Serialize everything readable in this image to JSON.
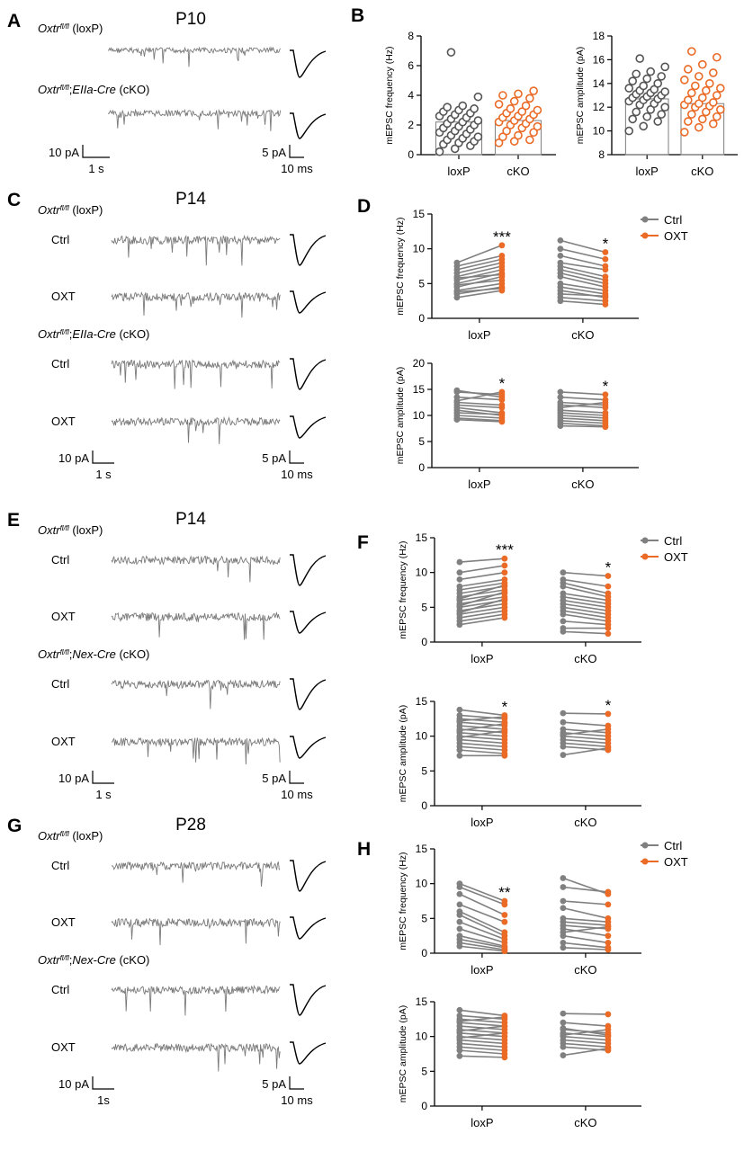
{
  "colors": {
    "ctrl": "#808080",
    "oxt": "#ea6a26",
    "loxp": "#555555",
    "ckO": "#ea6a26",
    "trace": "#7a7a7a",
    "axis": "#000000"
  },
  "panels": {
    "A": {
      "letter": "A",
      "age": "P10",
      "rows": [
        {
          "geno": "Oxtr",
          "sup": "fl/fl",
          "suffix": "(loxP)",
          "cond": ""
        },
        {
          "geno": "Oxtr",
          "sup": "fl/fl",
          "suffix": ";EIIa-Cre (cKO)",
          "cond": ""
        }
      ],
      "scale_left": [
        "10 pA",
        "1 s"
      ],
      "scale_right": [
        "5 pA",
        "10 ms"
      ]
    },
    "B": {
      "letter": "B"
    },
    "C": {
      "letter": "C",
      "age": "P14",
      "geno1": "Oxtr",
      "sup1": "fl/fl",
      "suffix1": "(loxP)",
      "geno2": "Oxtr",
      "sup2": "fl/fl",
      "suffix2": ";EIIa-Cre (cKO)",
      "cond": [
        "Ctrl",
        "OXT",
        "Ctrl",
        "OXT"
      ],
      "scale_left": [
        "10 pA",
        "1 s"
      ],
      "scale_right": [
        "5 pA",
        "10 ms"
      ]
    },
    "D": {
      "letter": "D"
    },
    "E": {
      "letter": "E",
      "age": "P14",
      "geno1": "Oxtr",
      "sup1": "fl/fl",
      "suffix1": "(loxP)",
      "geno2": "Oxtr",
      "sup2": "fl/fl",
      "suffix2": ";Nex-Cre (cKO)",
      "cond": [
        "Ctrl",
        "OXT",
        "Ctrl",
        "OXT"
      ],
      "scale_left": [
        "10 pA",
        "1 s"
      ],
      "scale_right": [
        "5 pA",
        "10 ms"
      ]
    },
    "F": {
      "letter": "F"
    },
    "G": {
      "letter": "G",
      "age": "P28",
      "geno1": "Oxtr",
      "sup1": "fl/fl",
      "suffix1": "(loxP)",
      "geno2": "Oxtr",
      "sup2": "fl/fl",
      "suffix2": ";Nex-Cre (cKO)",
      "cond": [
        "Ctrl",
        "OXT",
        "Ctrl",
        "OXT"
      ],
      "scale_left": [
        "10 pA",
        "1s"
      ],
      "scale_right": [
        "5 pA",
        "10 ms"
      ]
    },
    "H": {
      "letter": "H"
    }
  },
  "legend": {
    "ctrl": "Ctrl",
    "oxt": "OXT"
  },
  "chart_data": [
    {
      "id": "B1",
      "type": "scatter",
      "subtype": "bar-with-dots",
      "ylabel": "mEPSC frequency (Hz)",
      "categories": [
        "loxP",
        "cKO"
      ],
      "ylim": [
        0,
        8
      ],
      "yticks": [
        0,
        2,
        4,
        6,
        8
      ],
      "ytick_labels": [
        "0",
        "2",
        "4",
        "6",
        "8"
      ],
      "series": [
        {
          "name": "loxP",
          "mean": 2.2,
          "values": [
            0.2,
            0.4,
            0.6,
            0.7,
            0.8,
            0.9,
            1.0,
            1.1,
            1.2,
            1.3,
            1.4,
            1.5,
            1.6,
            1.7,
            1.8,
            1.9,
            2.0,
            2.1,
            2.2,
            2.3,
            2.4,
            2.5,
            2.6,
            2.7,
            2.8,
            2.9,
            3.0,
            3.1,
            3.2,
            3.3,
            3.9,
            6.9
          ]
        },
        {
          "name": "cKO",
          "mean": 2.3,
          "values": [
            0.8,
            0.9,
            1.0,
            1.2,
            1.3,
            1.5,
            1.6,
            1.8,
            1.9,
            2.0,
            2.1,
            2.2,
            2.3,
            2.4,
            2.5,
            2.6,
            2.7,
            2.8,
            2.9,
            3.0,
            3.1,
            3.3,
            3.4,
            3.6,
            3.8,
            4.0,
            4.1,
            4.3
          ]
        }
      ]
    },
    {
      "id": "B2",
      "type": "scatter",
      "subtype": "bar-with-dots",
      "ylabel": "mEPSC amplitude (pA)",
      "categories": [
        "loxP",
        "cKO"
      ],
      "ylim": [
        8,
        18
      ],
      "yticks": [
        8,
        10,
        12,
        14,
        16,
        18
      ],
      "ytick_labels": [
        "8",
        "10",
        "12",
        "14",
        "16",
        "18"
      ],
      "series": [
        {
          "name": "loxP",
          "mean": 12.7,
          "values": [
            10.0,
            10.4,
            10.8,
            11.0,
            11.2,
            11.4,
            11.6,
            11.8,
            12.0,
            12.2,
            12.3,
            12.5,
            12.6,
            12.7,
            12.8,
            12.9,
            13.0,
            13.1,
            13.2,
            13.3,
            13.4,
            13.5,
            13.6,
            13.8,
            14.0,
            14.2,
            14.4,
            14.6,
            14.8,
            15.0,
            15.4,
            16.1
          ]
        },
        {
          "name": "cKO",
          "mean": 12.3,
          "values": [
            9.9,
            10.3,
            10.6,
            10.8,
            11.0,
            11.2,
            11.4,
            11.6,
            11.8,
            12.0,
            12.1,
            12.2,
            12.3,
            12.4,
            12.6,
            12.8,
            13.0,
            13.2,
            13.4,
            13.6,
            13.8,
            14.0,
            14.3,
            14.6,
            14.9,
            15.2,
            15.6,
            16.2,
            16.7
          ]
        }
      ]
    },
    {
      "id": "D1",
      "type": "line",
      "subtype": "paired",
      "ylabel": "mEPSC frequency (Hz)",
      "categories": [
        "loxP",
        "cKO"
      ],
      "ylim": [
        0,
        15
      ],
      "yticks": [
        0,
        5,
        10,
        15
      ],
      "ytick_labels": [
        "0",
        "5",
        "10",
        "15"
      ],
      "stars": [
        "***",
        "*"
      ],
      "pairs": [
        [
          [
            3.0,
            4.0
          ],
          [
            3.5,
            4.5
          ],
          [
            4.0,
            5.0
          ],
          [
            4.5,
            6.0
          ],
          [
            5.0,
            6.5
          ],
          [
            5.5,
            7.0
          ],
          [
            6.0,
            7.5
          ],
          [
            6.5,
            8.0
          ],
          [
            7.0,
            8.5
          ],
          [
            7.5,
            9.0
          ],
          [
            8.0,
            10.5
          ],
          [
            3.8,
            4.3
          ],
          [
            4.8,
            5.5
          ],
          [
            5.8,
            6.3
          ]
        ],
        [
          [
            11.2,
            9.5
          ],
          [
            10.0,
            8.5
          ],
          [
            9.0,
            7.5
          ],
          [
            8.0,
            7.0
          ],
          [
            7.5,
            6.0
          ],
          [
            7.0,
            5.5
          ],
          [
            6.5,
            5.0
          ],
          [
            6.0,
            4.5
          ],
          [
            5.0,
            4.0
          ],
          [
            4.5,
            3.5
          ],
          [
            4.0,
            3.0
          ],
          [
            3.5,
            3.2
          ],
          [
            3.0,
            2.5
          ],
          [
            2.5,
            2.0
          ]
        ]
      ]
    },
    {
      "id": "D2",
      "type": "line",
      "subtype": "paired",
      "ylabel": "mEPSC amplitude (pA)",
      "categories": [
        "loxP",
        "cKO"
      ],
      "ylim": [
        0,
        20
      ],
      "yticks": [
        0,
        5,
        10,
        15,
        20
      ],
      "ytick_labels": [
        "0",
        "5",
        "10",
        "15",
        "20"
      ],
      "stars": [
        "*",
        "*"
      ],
      "pairs": [
        [
          [
            14.5,
            14.0
          ],
          [
            13.5,
            13.0
          ],
          [
            12.5,
            12.0
          ],
          [
            12.0,
            11.5
          ],
          [
            11.5,
            10.5
          ],
          [
            11.0,
            10.0
          ],
          [
            10.5,
            10.2
          ],
          [
            10.0,
            9.5
          ],
          [
            9.5,
            9.0
          ],
          [
            9.2,
            8.8
          ],
          [
            14.8,
            13.5
          ],
          [
            12.8,
            14.5
          ]
        ],
        [
          [
            14.5,
            14.0
          ],
          [
            13.5,
            13.0
          ],
          [
            12.5,
            12.0
          ],
          [
            12.0,
            11.5
          ],
          [
            11.0,
            10.5
          ],
          [
            10.5,
            10.0
          ],
          [
            10.0,
            9.5
          ],
          [
            9.5,
            9.0
          ],
          [
            9.0,
            8.5
          ],
          [
            8.5,
            8.0
          ],
          [
            8.0,
            7.8
          ],
          [
            11.5,
            12.5
          ]
        ]
      ]
    },
    {
      "id": "F1",
      "type": "line",
      "subtype": "paired",
      "ylabel": "mEPSC frequency (Hz)",
      "categories": [
        "loxP",
        "cKO"
      ],
      "ylim": [
        0,
        15
      ],
      "yticks": [
        0,
        5,
        10,
        15
      ],
      "ytick_labels": [
        "0",
        "5",
        "10",
        "15"
      ],
      "stars": [
        "***",
        "*"
      ],
      "pairs": [
        [
          [
            2.5,
            3.5
          ],
          [
            3.0,
            4.0
          ],
          [
            3.5,
            4.5
          ],
          [
            4.0,
            5.0
          ],
          [
            4.5,
            5.5
          ],
          [
            5.0,
            6.0
          ],
          [
            5.5,
            6.5
          ],
          [
            6.0,
            7.0
          ],
          [
            6.5,
            7.5
          ],
          [
            7.0,
            8.0
          ],
          [
            7.5,
            8.5
          ],
          [
            8.0,
            9.0
          ],
          [
            9.0,
            10.0
          ],
          [
            10.0,
            11.0
          ],
          [
            11.5,
            12.0
          ],
          [
            5.2,
            7.2
          ],
          [
            6.2,
            8.2
          ],
          [
            4.2,
            6.2
          ]
        ],
        [
          [
            10.0,
            9.5
          ],
          [
            9.0,
            8.0
          ],
          [
            8.5,
            7.0
          ],
          [
            8.0,
            6.5
          ],
          [
            7.0,
            6.0
          ],
          [
            6.5,
            5.5
          ],
          [
            6.0,
            5.0
          ],
          [
            5.5,
            4.5
          ],
          [
            5.0,
            4.0
          ],
          [
            4.5,
            3.5
          ],
          [
            4.0,
            3.0
          ],
          [
            3.0,
            2.5
          ],
          [
            2.0,
            2.0
          ],
          [
            1.5,
            1.2
          ]
        ]
      ]
    },
    {
      "id": "F2",
      "type": "line",
      "subtype": "paired",
      "ylabel": "mEPSC amplitude (pA)",
      "categories": [
        "loxP",
        "cKO"
      ],
      "ylim": [
        0,
        15
      ],
      "yticks": [
        0,
        5,
        10,
        15
      ],
      "ytick_labels": [
        "0",
        "5",
        "10",
        "15"
      ],
      "stars": [
        "*",
        "*"
      ],
      "pairs": [
        [
          [
            13.8,
            13.0
          ],
          [
            13.0,
            12.5
          ],
          [
            12.5,
            12.0
          ],
          [
            12.0,
            11.5
          ],
          [
            11.5,
            11.0
          ],
          [
            11.0,
            10.5
          ],
          [
            10.5,
            10.0
          ],
          [
            10.0,
            9.5
          ],
          [
            9.5,
            9.0
          ],
          [
            9.0,
            8.5
          ],
          [
            8.5,
            8.0
          ],
          [
            8.0,
            7.5
          ],
          [
            7.2,
            7.2
          ],
          [
            12.2,
            12.8
          ],
          [
            10.8,
            11.8
          ],
          [
            9.8,
            10.8
          ]
        ],
        [
          [
            13.3,
            13.2
          ],
          [
            12.0,
            11.5
          ],
          [
            11.0,
            10.5
          ],
          [
            10.5,
            10.0
          ],
          [
            10.0,
            9.5
          ],
          [
            9.5,
            9.0
          ],
          [
            9.0,
            8.5
          ],
          [
            8.5,
            8.0
          ],
          [
            7.3,
            8.3
          ],
          [
            10.2,
            11.0
          ]
        ]
      ]
    },
    {
      "id": "H1",
      "type": "line",
      "subtype": "paired",
      "ylabel": "mEPSC frequency (Hz)",
      "categories": [
        "loxP",
        "cKO"
      ],
      "ylim": [
        0,
        15
      ],
      "yticks": [
        0,
        5,
        10,
        15
      ],
      "ytick_labels": [
        "0",
        "5",
        "10",
        "15"
      ],
      "stars": [
        "**",
        ""
      ],
      "pairs": [
        [
          [
            10.0,
            7.5
          ],
          [
            9.5,
            7.0
          ],
          [
            8.5,
            5.5
          ],
          [
            7.0,
            4.5
          ],
          [
            6.0,
            3.0
          ],
          [
            5.5,
            2.5
          ],
          [
            4.5,
            2.0
          ],
          [
            3.5,
            1.5
          ],
          [
            2.5,
            1.0
          ],
          [
            2.0,
            0.8
          ],
          [
            1.5,
            0.5
          ],
          [
            1.0,
            0.3
          ]
        ],
        [
          [
            10.8,
            8.5
          ],
          [
            9.5,
            8.8
          ],
          [
            7.5,
            7.0
          ],
          [
            6.5,
            5.0
          ],
          [
            5.0,
            4.5
          ],
          [
            4.5,
            4.0
          ],
          [
            4.0,
            3.5
          ],
          [
            3.5,
            2.5
          ],
          [
            3.0,
            3.8
          ],
          [
            2.5,
            1.5
          ],
          [
            1.5,
            0.8
          ],
          [
            0.8,
            0.5
          ]
        ]
      ]
    },
    {
      "id": "H2",
      "type": "line",
      "subtype": "paired",
      "ylabel": "mEPSC amplitude (pA)",
      "categories": [
        "loxP",
        "cKO"
      ],
      "ylim": [
        0,
        15
      ],
      "yticks": [
        0,
        5,
        10,
        15
      ],
      "ytick_labels": [
        "0",
        "5",
        "10",
        "15"
      ],
      "stars": [
        "",
        ""
      ],
      "pairs": [
        [
          [
            13.8,
            13.0
          ],
          [
            13.0,
            12.5
          ],
          [
            12.5,
            12.0
          ],
          [
            12.0,
            11.5
          ],
          [
            11.5,
            11.0
          ],
          [
            11.0,
            10.5
          ],
          [
            10.5,
            10.0
          ],
          [
            10.0,
            9.5
          ],
          [
            9.5,
            9.0
          ],
          [
            9.0,
            8.5
          ],
          [
            8.5,
            8.0
          ],
          [
            8.0,
            7.5
          ],
          [
            7.2,
            7.0
          ],
          [
            12.2,
            12.8
          ],
          [
            10.8,
            11.5
          ],
          [
            9.8,
            10.5
          ]
        ],
        [
          [
            13.3,
            13.2
          ],
          [
            12.0,
            11.5
          ],
          [
            11.0,
            10.5
          ],
          [
            10.5,
            10.0
          ],
          [
            10.0,
            9.5
          ],
          [
            9.5,
            9.0
          ],
          [
            9.0,
            8.5
          ],
          [
            8.5,
            8.0
          ],
          [
            7.3,
            8.3
          ],
          [
            10.2,
            11.0
          ],
          [
            11.2,
            10.2
          ]
        ]
      ]
    }
  ]
}
